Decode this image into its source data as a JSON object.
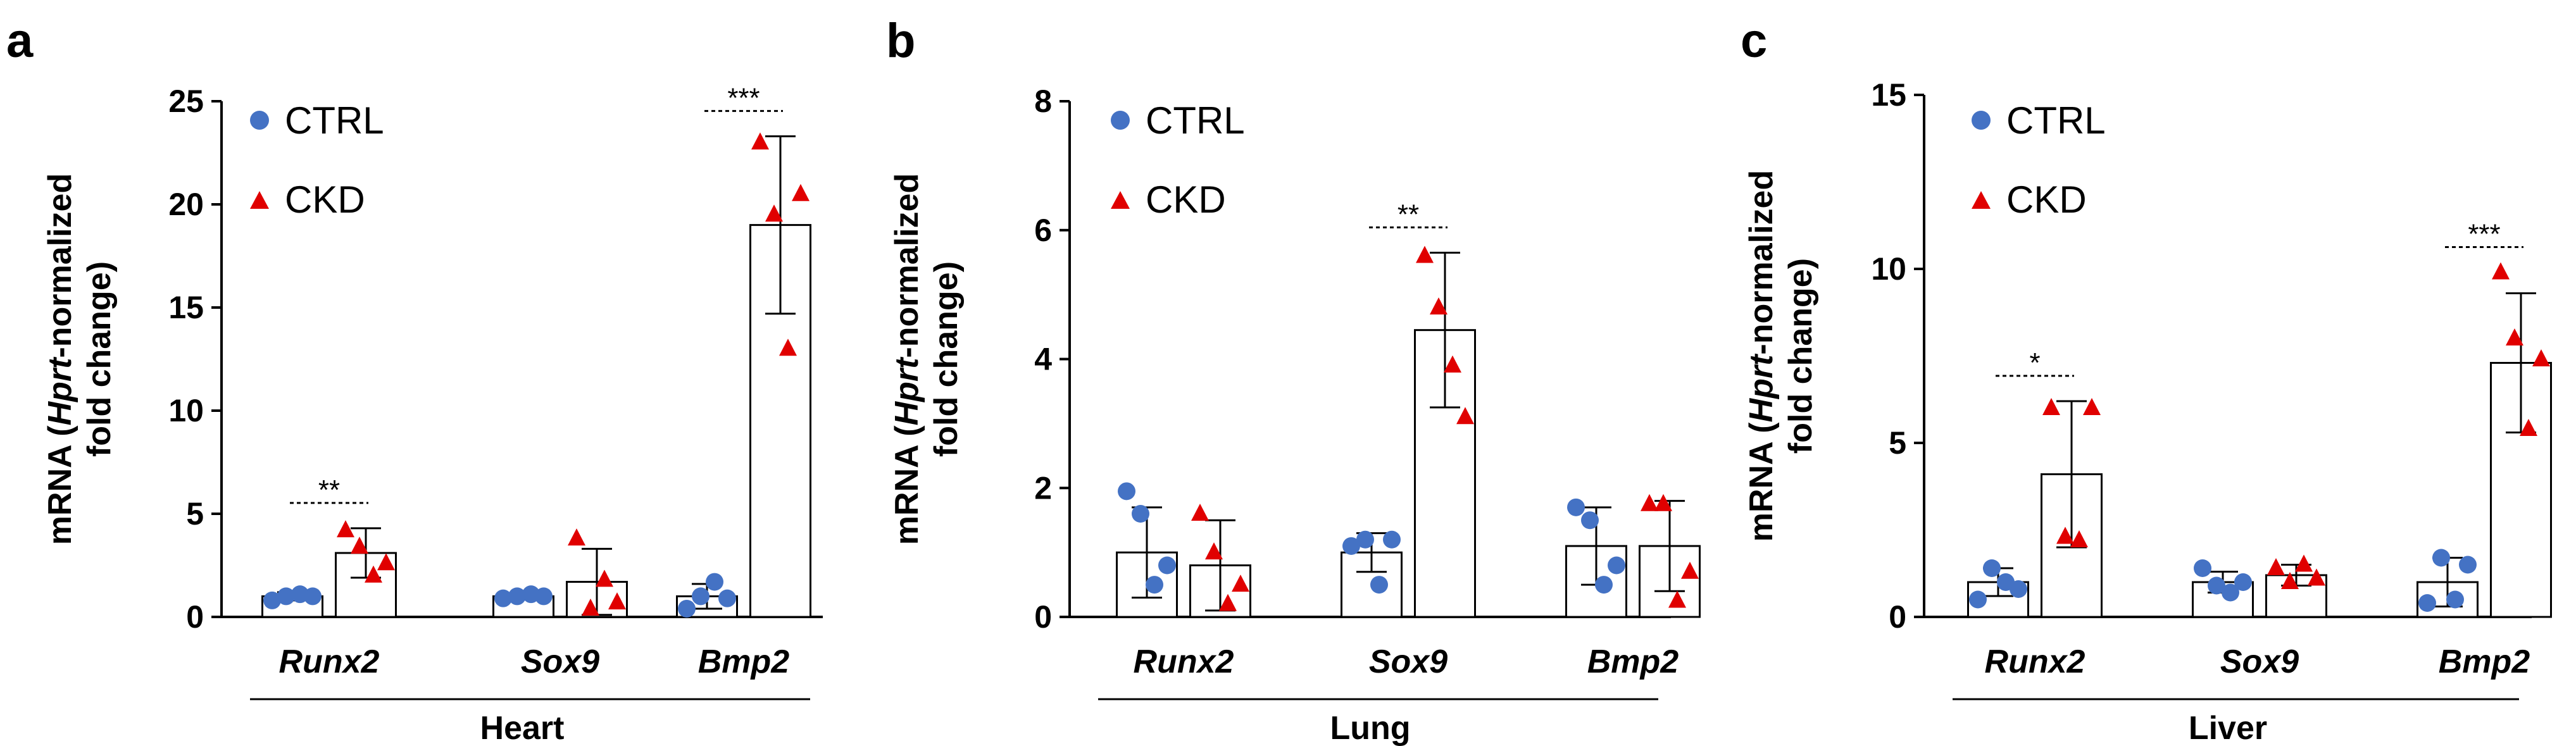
{
  "colors": {
    "ctrl": "#4472C4",
    "ckd": "#E00000",
    "axis": "#000000",
    "bar_fill": "#FFFFFF"
  },
  "legend": {
    "ctrl_label": "CTRL",
    "ckd_label": "CKD"
  },
  "ylabel": {
    "prefix": "mRNA (",
    "italic": "Hprt",
    "suffix": "-normalized",
    "line2": "fold change)"
  },
  "chart_data": [
    {
      "panel": "a",
      "type": "bar",
      "tissue": "Heart",
      "categories": [
        "Runx2",
        "Sox9",
        "Bmp2"
      ],
      "ylim": [
        0,
        25
      ],
      "yticks": [
        0,
        5,
        10,
        15,
        20,
        25
      ],
      "series": [
        {
          "name": "CTRL",
          "marker": "circle",
          "means": [
            1.0,
            1.0,
            1.0
          ],
          "sd": [
            0.2,
            0.1,
            0.6
          ],
          "points": [
            [
              0.8,
              1.0,
              1.1,
              1.0
            ],
            [
              0.9,
              1.0,
              1.1,
              1.0
            ],
            [
              0.4,
              1.0,
              1.7,
              0.9
            ]
          ]
        },
        {
          "name": "CKD",
          "marker": "triangle",
          "means": [
            3.1,
            1.7,
            19.0
          ],
          "sd": [
            1.2,
            1.6,
            4.3
          ],
          "points": [
            [
              4.2,
              3.4,
              2.0,
              2.6
            ],
            [
              3.8,
              0.4,
              1.8,
              0.7
            ],
            [
              23.0,
              19.5,
              13.0,
              20.5
            ]
          ]
        }
      ],
      "significance": [
        {
          "category": "Runx2",
          "label": "**"
        },
        {
          "category": "Bmp2",
          "label": "***"
        }
      ]
    },
    {
      "panel": "b",
      "type": "bar",
      "tissue": "Lung",
      "categories": [
        "Runx2",
        "Sox9",
        "Bmp2"
      ],
      "ylim": [
        0,
        8
      ],
      "yticks": [
        0,
        2,
        4,
        6,
        8
      ],
      "series": [
        {
          "name": "CTRL",
          "marker": "circle",
          "means": [
            1.0,
            1.0,
            1.1
          ],
          "sd": [
            0.7,
            0.3,
            0.6
          ],
          "points": [
            [
              1.95,
              1.6,
              0.5,
              0.8
            ],
            [
              1.1,
              1.2,
              0.5,
              1.2
            ],
            [
              1.7,
              1.5,
              0.5,
              0.8
            ]
          ]
        },
        {
          "name": "CKD",
          "marker": "triangle",
          "means": [
            0.8,
            4.45,
            1.1
          ],
          "sd": [
            0.7,
            1.2,
            0.7
          ],
          "points": [
            [
              1.6,
              1.0,
              0.2,
              0.5
            ],
            [
              5.6,
              4.8,
              3.9,
              3.1
            ],
            [
              1.75,
              1.75,
              0.25,
              0.7
            ]
          ]
        }
      ],
      "significance": [
        {
          "category": "Sox9",
          "label": "**"
        }
      ]
    },
    {
      "panel": "c",
      "type": "bar",
      "tissue": "Liver",
      "categories": [
        "Runx2",
        "Sox9",
        "Bmp2"
      ],
      "ylim": [
        0,
        15
      ],
      "yticks": [
        0,
        5,
        10,
        15
      ],
      "series": [
        {
          "name": "CTRL",
          "marker": "circle",
          "means": [
            1.0,
            1.0,
            1.0
          ],
          "sd": [
            0.4,
            0.3,
            0.7
          ],
          "points": [
            [
              0.5,
              1.4,
              1.0,
              0.8
            ],
            [
              1.4,
              0.9,
              0.7,
              1.0
            ],
            [
              0.4,
              1.7,
              0.5,
              1.5
            ]
          ]
        },
        {
          "name": "CKD",
          "marker": "triangle",
          "means": [
            4.1,
            1.2,
            7.3
          ],
          "sd": [
            2.1,
            0.3,
            2.0
          ],
          "points": [
            [
              6.0,
              2.3,
              2.2,
              6.0
            ],
            [
              1.4,
              1.0,
              1.5,
              1.1
            ],
            [
              9.9,
              8.0,
              5.4,
              7.4
            ]
          ]
        }
      ],
      "significance": [
        {
          "category": "Runx2",
          "label": "*"
        },
        {
          "category": "Bmp2",
          "label": "***"
        }
      ]
    }
  ]
}
